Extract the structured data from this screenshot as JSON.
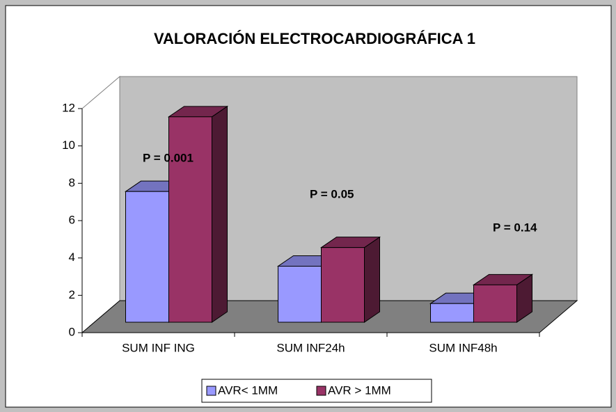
{
  "chart_data": {
    "type": "bar3d",
    "title": "VALORACIÓN ELECTROCARDIOGRÁFICA 1",
    "categories": [
      "SUM INF ING",
      "SUM INF24h",
      "SUM INF48h"
    ],
    "series": [
      {
        "name": "AVR< 1MM",
        "color": "#9999ff",
        "values": [
          7,
          3,
          1
        ]
      },
      {
        "name": "AVR > 1MM",
        "color": "#993366",
        "values": [
          11,
          4,
          2
        ]
      }
    ],
    "ylim": [
      0,
      12
    ],
    "yticks": [
      0,
      2,
      4,
      6,
      8,
      10,
      12
    ],
    "annotations": [
      "P = 0.001",
      "P = 0.05",
      "P =  0.14"
    ],
    "wall_color": "#c0c0c0",
    "floor_color": "#808080"
  }
}
